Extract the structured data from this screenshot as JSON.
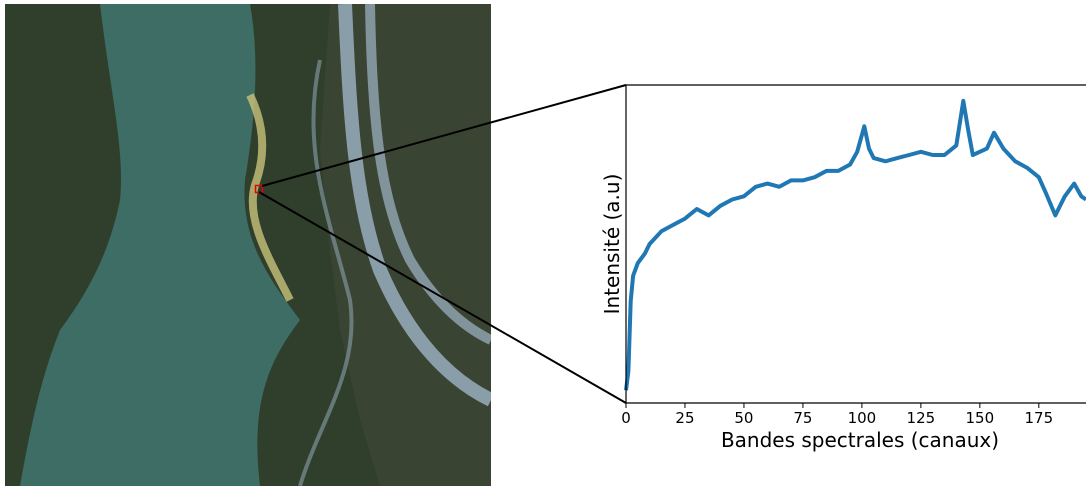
{
  "chart_data": {
    "type": "line",
    "x_label": "Bandes spectrales (canaux)",
    "y_label": "Intensité (a.u)",
    "color": "#1f77b4",
    "x": [
      0,
      1,
      2,
      3,
      5,
      8,
      10,
      15,
      20,
      25,
      30,
      35,
      40,
      45,
      50,
      55,
      60,
      65,
      70,
      75,
      80,
      85,
      90,
      95,
      98,
      101,
      103,
      105,
      110,
      115,
      120,
      125,
      130,
      135,
      140,
      143,
      145,
      147,
      150,
      153,
      156,
      160,
      165,
      170,
      175,
      178,
      182,
      186,
      190,
      193,
      195
    ],
    "values": [
      0.04,
      0.1,
      0.32,
      0.4,
      0.44,
      0.47,
      0.5,
      0.54,
      0.56,
      0.58,
      0.61,
      0.59,
      0.62,
      0.64,
      0.65,
      0.68,
      0.69,
      0.68,
      0.7,
      0.7,
      0.71,
      0.73,
      0.73,
      0.75,
      0.79,
      0.87,
      0.8,
      0.77,
      0.76,
      0.77,
      0.78,
      0.79,
      0.78,
      0.78,
      0.81,
      0.95,
      0.86,
      0.78,
      0.79,
      0.8,
      0.85,
      0.8,
      0.76,
      0.74,
      0.71,
      0.66,
      0.59,
      0.65,
      0.69,
      0.65,
      0.64
    ],
    "xlim": [
      0,
      195
    ],
    "ylim": [
      0,
      1
    ],
    "xticks": [
      0,
      25,
      50,
      75,
      100,
      125,
      150,
      175
    ]
  }
}
